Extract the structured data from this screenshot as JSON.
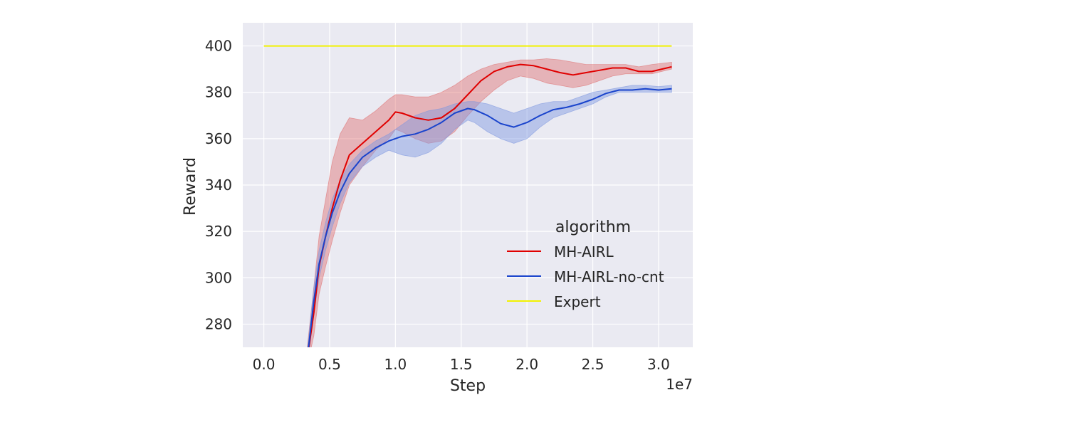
{
  "chart_data": {
    "type": "line",
    "xlabel": "Step",
    "ylabel": "Reward",
    "x_offset_label": "1e7",
    "xlim": [
      -0.16,
      3.26
    ],
    "ylim": [
      270,
      410
    ],
    "xticks": [
      0.0,
      0.5,
      1.0,
      1.5,
      2.0,
      2.5,
      3.0
    ],
    "xtick_labels": [
      "0.0",
      "0.5",
      "1.0",
      "1.5",
      "2.0",
      "2.5",
      "3.0"
    ],
    "yticks": [
      280,
      300,
      320,
      340,
      360,
      380,
      400
    ],
    "ytick_labels": [
      "280",
      "300",
      "320",
      "340",
      "360",
      "380",
      "400"
    ],
    "grid": true,
    "background": "#eaeaf2",
    "legend": {
      "title": "algorithm",
      "placement": "lower-right",
      "entries": [
        "MH-AIRL",
        "MH-AIRL-no-cnt",
        "Expert"
      ]
    },
    "series": [
      {
        "name": "MH-AIRL",
        "color": "#e00000",
        "band_color": "#e07070",
        "x": [
          0.33,
          0.38,
          0.42,
          0.47,
          0.52,
          0.58,
          0.65,
          0.75,
          0.85,
          0.95,
          1.0,
          1.05,
          1.15,
          1.25,
          1.35,
          1.45,
          1.55,
          1.65,
          1.75,
          1.85,
          1.95,
          2.05,
          2.15,
          2.25,
          2.35,
          2.45,
          2.55,
          2.65,
          2.75,
          2.85,
          2.95,
          3.1
        ],
        "y": [
          265,
          285,
          305,
          318,
          330,
          342,
          353,
          358,
          363,
          368,
          371.5,
          371,
          369,
          368,
          369,
          373,
          379,
          385,
          389,
          391,
          392,
          391.5,
          390,
          388.5,
          387.5,
          388.5,
          389.5,
          390.5,
          390.5,
          389,
          389,
          391
        ],
        "lower": [
          262,
          275,
          293,
          305,
          316,
          328,
          340,
          348,
          355,
          360,
          364,
          363,
          360,
          358,
          359,
          363,
          370,
          376,
          381,
          385,
          387,
          386,
          384,
          383,
          382,
          383,
          385,
          387,
          388,
          388,
          388,
          390
        ],
        "upper": [
          270,
          296,
          318,
          334,
          350,
          362,
          369,
          368,
          372,
          377,
          379,
          379,
          378,
          378,
          380,
          383,
          387,
          390,
          392,
          393,
          394,
          394,
          394.5,
          394,
          393,
          392,
          392,
          392,
          392,
          391,
          392,
          393
        ]
      },
      {
        "name": "MH-AIRL-no-cnt",
        "color": "#1a44cc",
        "band_color": "#7d96e0",
        "x": [
          0.33,
          0.38,
          0.42,
          0.47,
          0.52,
          0.58,
          0.65,
          0.75,
          0.85,
          0.95,
          1.05,
          1.15,
          1.25,
          1.35,
          1.45,
          1.55,
          1.6,
          1.7,
          1.8,
          1.9,
          2.0,
          2.1,
          2.2,
          2.3,
          2.4,
          2.5,
          2.6,
          2.7,
          2.8,
          2.9,
          3.0,
          3.1
        ],
        "y": [
          265,
          290,
          306,
          318,
          328,
          337,
          345,
          352,
          356,
          359,
          361,
          362,
          364,
          367,
          371,
          373,
          372.5,
          370,
          366.5,
          365,
          367,
          370,
          372.5,
          373.5,
          375,
          377,
          379.5,
          381,
          381,
          381.5,
          381,
          381.5
        ],
        "lower": [
          262,
          284,
          300,
          312,
          322,
          332,
          341,
          348,
          352,
          355,
          353,
          352,
          354,
          358,
          364,
          368,
          367,
          363,
          360,
          358,
          360,
          365,
          369,
          371,
          373,
          375,
          378,
          380,
          380,
          380,
          380,
          380
        ],
        "upper": [
          268,
          296,
          312,
          324,
          334,
          342,
          349,
          355,
          359,
          362,
          366,
          370,
          372,
          373,
          375,
          376,
          376,
          375,
          373,
          371,
          373,
          375,
          376,
          376,
          378,
          380,
          381,
          382,
          383,
          383,
          382.5,
          383
        ]
      },
      {
        "name": "Expert",
        "color": "#f2f200",
        "x": [
          0.0,
          3.1
        ],
        "y": [
          400,
          400
        ]
      }
    ]
  }
}
